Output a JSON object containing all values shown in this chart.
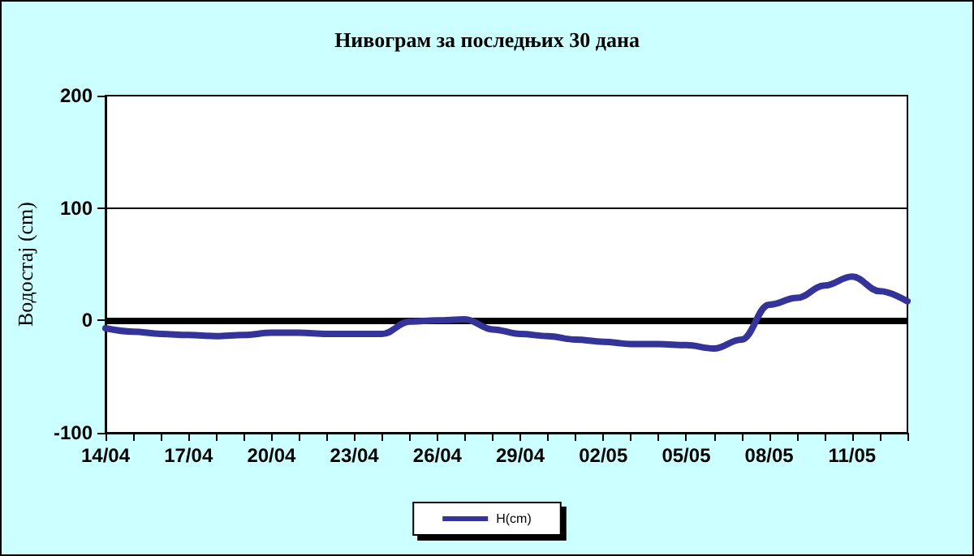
{
  "chart_data": {
    "type": "line",
    "title": "Нивограм за последњих 30 дана",
    "ylabel": "Водостај (cm)",
    "categories": [
      "14/04",
      null,
      null,
      "17/04",
      null,
      null,
      "20/04",
      null,
      null,
      "23/04",
      null,
      null,
      "26/04",
      null,
      null,
      "29/04",
      null,
      null,
      "02/05",
      null,
      null,
      "05/05",
      null,
      null,
      "08/05",
      null,
      null,
      "11/05",
      null,
      null
    ],
    "series": [
      {
        "name": "H(cm)",
        "color": "#333399",
        "values": [
          -7,
          -10,
          -12,
          -13,
          -14,
          -13,
          -11,
          -11,
          -12,
          -12,
          -12,
          -1,
          0,
          1,
          -8,
          -12,
          -14,
          -17,
          -19,
          -21,
          -21,
          -22,
          -25,
          -17,
          14,
          20,
          31,
          39,
          26,
          17
        ]
      }
    ],
    "ylim": [
      -100,
      200
    ],
    "yticks": [
      -100,
      0,
      100,
      200
    ],
    "grid": false,
    "legend": "bottom",
    "marker": "none",
    "line_style": "solid",
    "ref_lines": [
      {
        "axis": "y",
        "value": 0,
        "color": "#000000"
      },
      {
        "axis": "y",
        "value": 100,
        "color": "#000000"
      }
    ]
  }
}
